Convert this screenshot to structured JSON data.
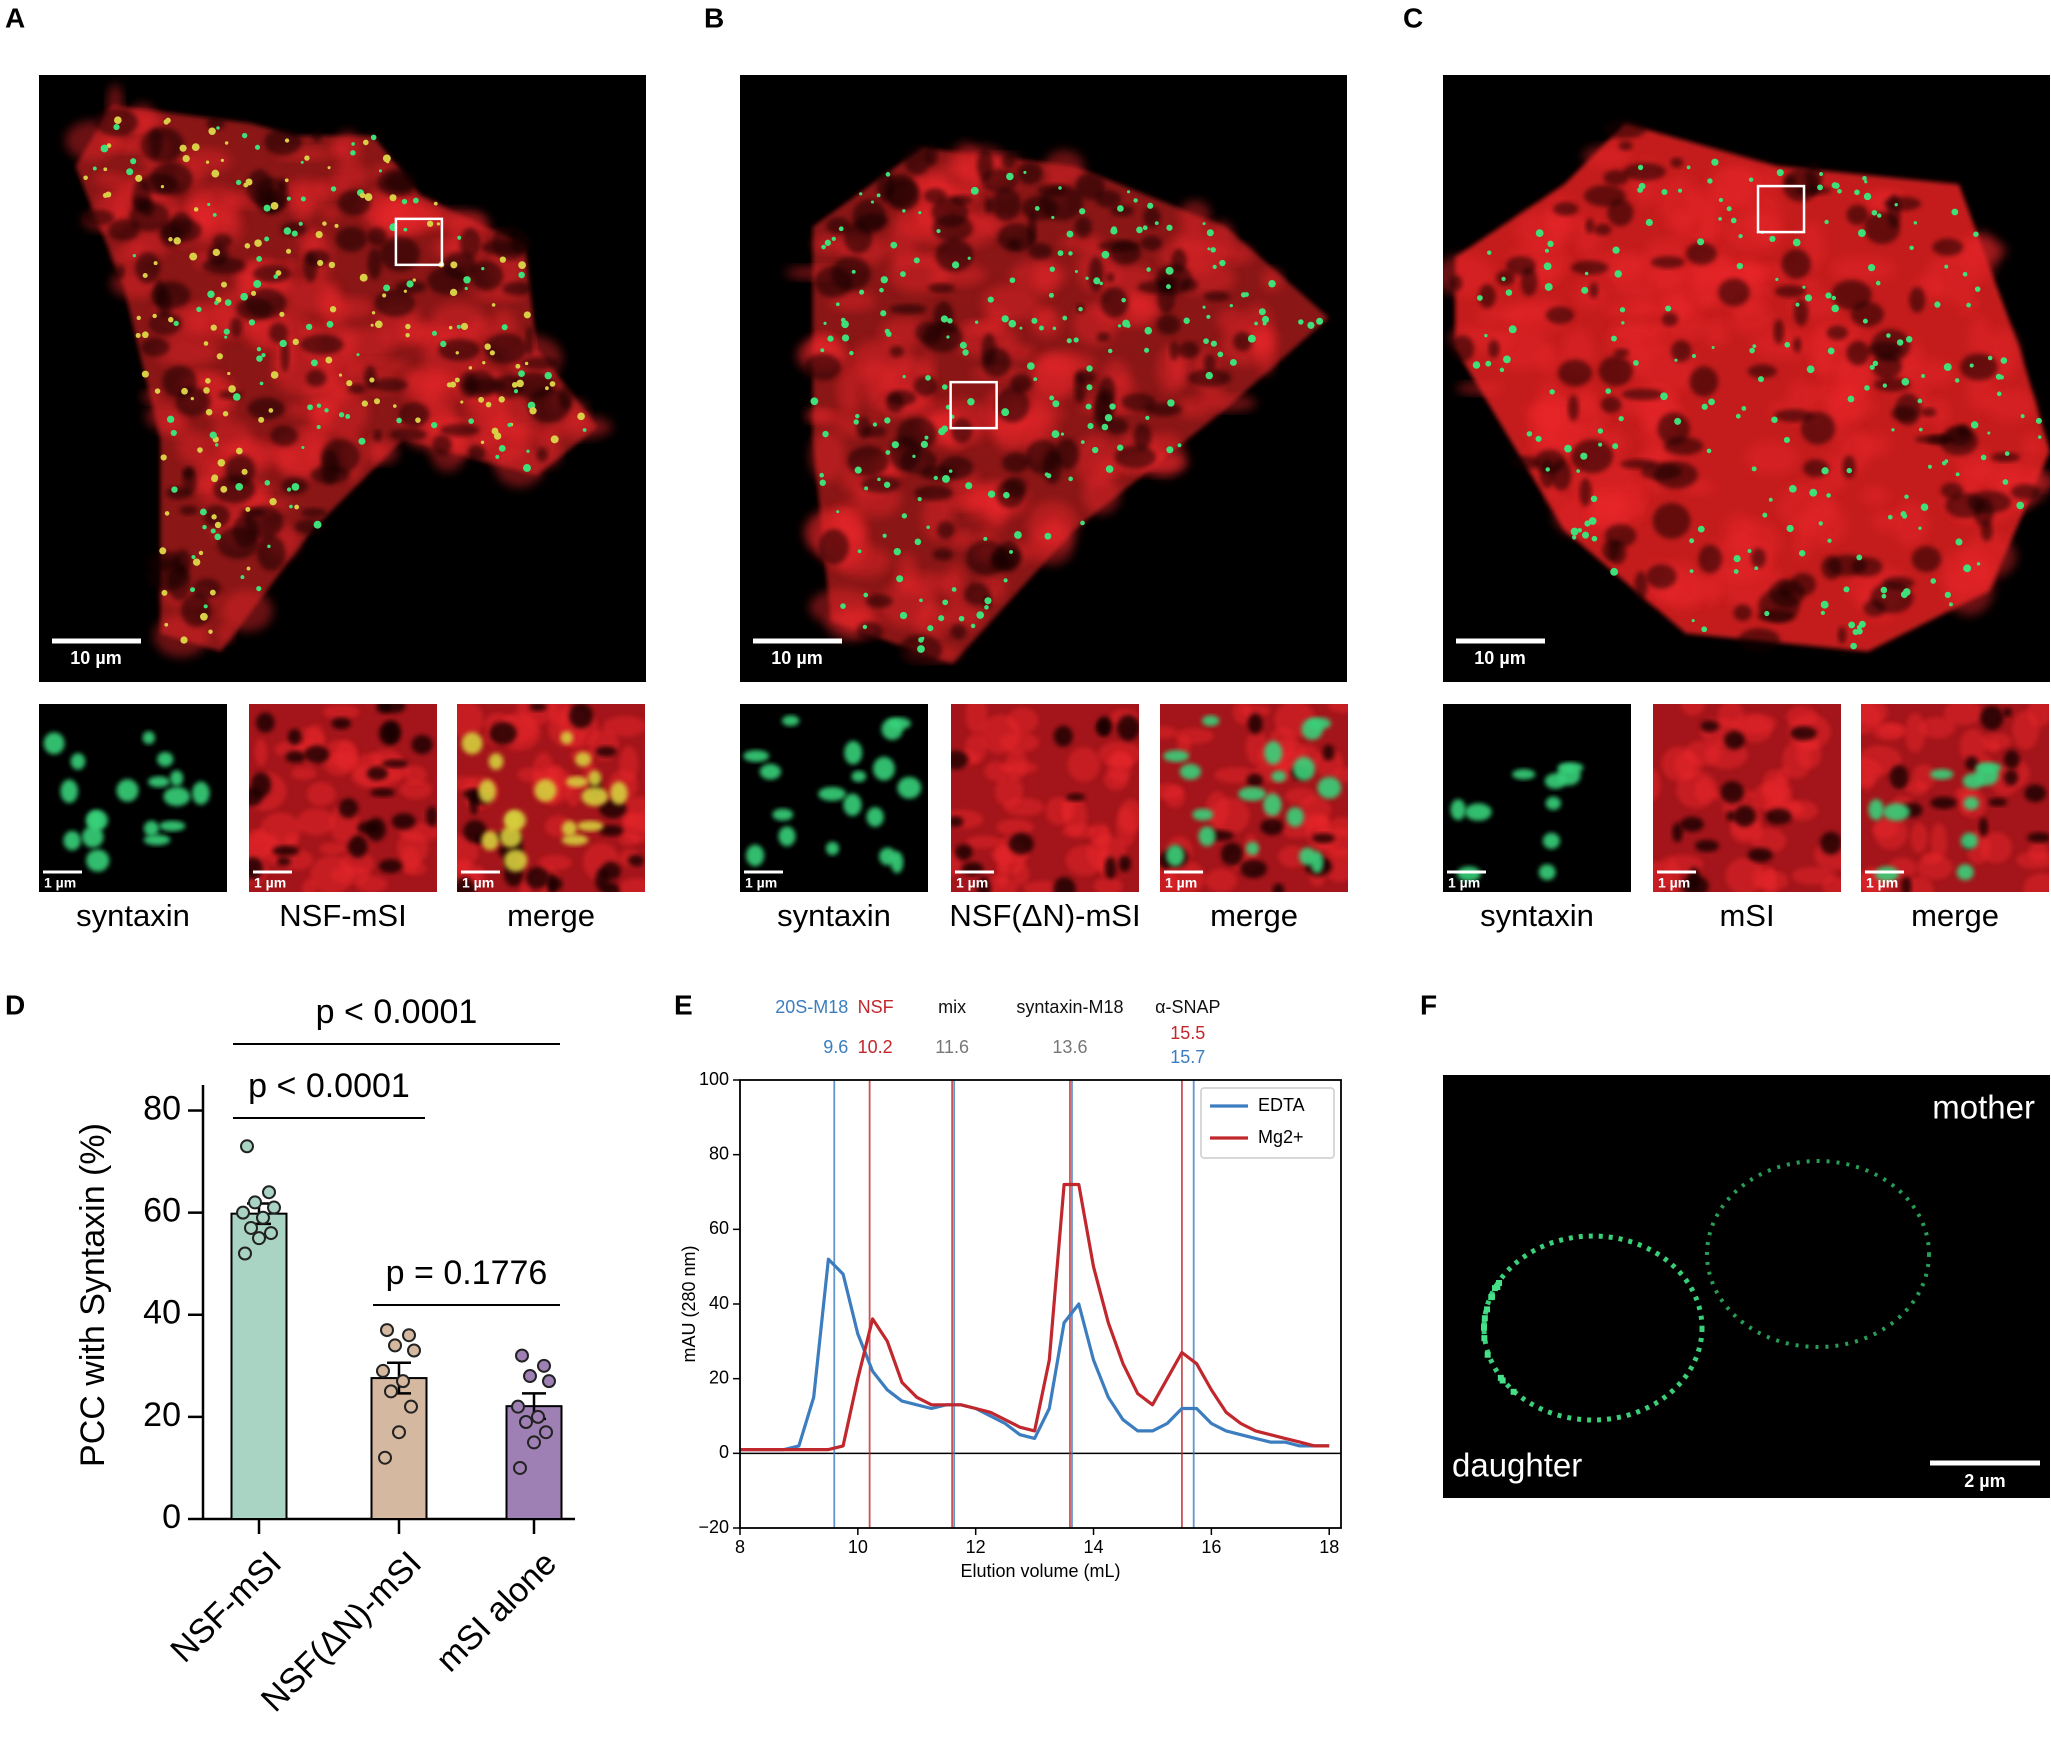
{
  "panels": [
    {
      "label": "A",
      "scale_bar": "10 µm",
      "insets": [
        {
          "scale_bar": "1 µm",
          "caption": "syntaxin"
        },
        {
          "scale_bar": "1 µm",
          "caption": "NSF-mSI"
        },
        {
          "scale_bar": "1 µm",
          "caption": "merge"
        }
      ]
    },
    {
      "label": "B",
      "scale_bar": "10 µm",
      "insets": [
        {
          "scale_bar": "1 µm",
          "caption": "syntaxin"
        },
        {
          "scale_bar": "1 µm",
          "caption": "NSF(ΔN)-mSI"
        },
        {
          "scale_bar": "1 µm",
          "caption": "merge"
        }
      ]
    },
    {
      "label": "C",
      "scale_bar": "10 µm",
      "insets": [
        {
          "scale_bar": "1 µm",
          "caption": "syntaxin"
        },
        {
          "scale_bar": "1 µm",
          "caption": "mSI"
        },
        {
          "scale_bar": "1 µm",
          "caption": "merge"
        }
      ]
    }
  ],
  "chart_data": [
    {
      "type": "bar",
      "panel_label": "D",
      "ylabel": "PCC with Syntaxin (%)",
      "categories": [
        "NSF-mSI",
        "NSF(ΔN)-mSI",
        "mSI alone"
      ],
      "values": [
        59.8,
        27.6,
        22.1
      ],
      "errors": [
        2.0,
        3.0,
        2.5
      ],
      "points": [
        [
          73,
          64,
          62,
          61,
          60,
          59,
          57,
          56,
          55,
          52
        ],
        [
          37,
          36,
          34,
          33,
          29,
          27,
          25,
          22,
          17,
          12
        ],
        [
          32,
          30,
          28,
          27,
          22,
          20,
          19,
          17,
          15,
          10
        ]
      ],
      "colors": [
        "#a9d4c3",
        "#d5b8a0",
        "#9f80b5"
      ],
      "ylim": [
        0,
        85
      ],
      "yticks": [
        0,
        20,
        40,
        60,
        80
      ],
      "comparisons": [
        {
          "label": "p < 0.0001",
          "between": [
            0,
            2
          ]
        },
        {
          "label": "p < 0.0001",
          "between": [
            0,
            1
          ]
        },
        {
          "label": "p = 0.1776",
          "between": [
            1,
            2
          ]
        }
      ]
    },
    {
      "type": "line",
      "panel_label": "E",
      "xlabel": "Elution volume (mL)",
      "ylabel": "mAU (280 nm)",
      "x": [
        8,
        8.25,
        8.5,
        8.75,
        9,
        9.25,
        9.5,
        9.75,
        10,
        10.25,
        10.5,
        10.75,
        11,
        11.25,
        11.5,
        11.75,
        12,
        12.25,
        12.5,
        12.75,
        13,
        13.25,
        13.5,
        13.75,
        14,
        14.25,
        14.5,
        14.75,
        15,
        15.25,
        15.5,
        15.75,
        16,
        16.25,
        16.5,
        16.75,
        17,
        17.25,
        17.5,
        17.75,
        18
      ],
      "series": [
        {
          "name": "EDTA",
          "color": "#3b7dbf",
          "values": [
            1,
            1,
            1,
            1,
            2,
            15,
            52,
            48,
            32,
            22,
            17,
            14,
            13,
            12,
            13,
            13,
            12,
            10,
            8,
            5,
            4,
            12,
            35,
            40,
            25,
            15,
            9,
            6,
            6,
            8,
            12,
            12,
            8,
            6,
            5,
            4,
            3,
            3,
            2,
            2,
            2
          ]
        },
        {
          "name": "Mg2+",
          "color": "#c0282d",
          "values": [
            1,
            1,
            1,
            1,
            1,
            1,
            1,
            2,
            20,
            36,
            30,
            19,
            15,
            13,
            13,
            13,
            12,
            11,
            9,
            7,
            6,
            25,
            72,
            72,
            50,
            35,
            24,
            16,
            13,
            20,
            27,
            24,
            17,
            11,
            8,
            6,
            5,
            4,
            3,
            2,
            2
          ]
        }
      ],
      "xlim": [
        8,
        18.2
      ],
      "ylim": [
        -20,
        100
      ],
      "xticks": [
        8,
        10,
        12,
        14,
        16,
        18
      ],
      "yticks": [
        {
          "value": -20,
          "label": "−20"
        },
        0,
        20,
        40,
        60,
        80,
        100
      ],
      "legend": "upper right",
      "peaks": [
        {
          "name": "20S-M18",
          "name_color": "#3b7dbf",
          "positions": [
            {
              "value": 9.6,
              "color": "#3b7dbf",
              "lines": [
                "#3b7dbf"
              ]
            }
          ]
        },
        {
          "name": "NSF",
          "name_color": "#c0282d",
          "positions": [
            {
              "value": 10.2,
              "color": "#c0282d",
              "lines": [
                "#c0282d"
              ]
            }
          ]
        },
        {
          "name": "mix",
          "name_color": "#111111",
          "positions": [
            {
              "value": 11.6,
              "color": "#777777",
              "lines": [
                "#c0282d",
                "#3b7dbf"
              ]
            }
          ]
        },
        {
          "name": "syntaxin-M18",
          "name_color": "#111111",
          "positions": [
            {
              "value": 13.6,
              "color": "#777777",
              "lines": [
                "#c0282d",
                "#3b7dbf"
              ]
            }
          ]
        },
        {
          "name": "α-SNAP",
          "name_color": "#111111",
          "positions": [
            {
              "value": 15.5,
              "color": "#c0282d",
              "lines": [
                "#c0282d"
              ]
            },
            {
              "value": 15.7,
              "color": "#3b7dbf",
              "lines": [
                "#3b7dbf"
              ]
            }
          ]
        }
      ]
    }
  ],
  "panel_F": {
    "label": "F",
    "top_right": "mother",
    "bottom_left": "daughter",
    "scale_bar": "2 µm"
  }
}
